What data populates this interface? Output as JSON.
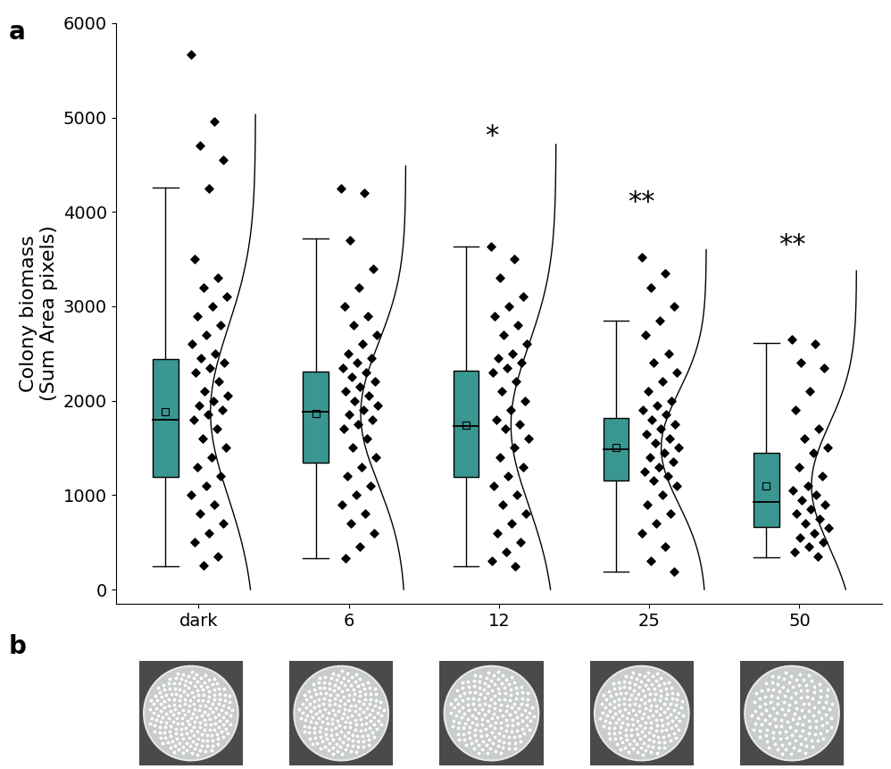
{
  "chart_data": {
    "type": "box",
    "y_label": "Colony biomass\n(Sum Area pixels)",
    "categories": [
      "dark",
      "6",
      "12",
      "25",
      "50"
    ],
    "color": "#3a9690",
    "ylim": [
      -150,
      6000
    ],
    "yticks": [
      0,
      1000,
      2000,
      3000,
      4000,
      5000,
      6000
    ],
    "boxes": [
      {
        "whisker_low": 250,
        "q1": 1195,
        "median": 1800,
        "q3": 2440,
        "whisker_high": 4260,
        "mean": 1880,
        "distribution": {
          "mean": 1880,
          "sd": 900
        },
        "points": [
          5667,
          4960,
          4700,
          4550,
          4250,
          3500,
          3300,
          3200,
          3100,
          3000,
          2900,
          2800,
          2700,
          2600,
          2500,
          2450,
          2400,
          2350,
          2300,
          2200,
          2100,
          2050,
          2000,
          1950,
          1900,
          1850,
          1800,
          1700,
          1600,
          1500,
          1400,
          1300,
          1200,
          1100,
          1000,
          900,
          800,
          700,
          600,
          500,
          350,
          260
        ]
      },
      {
        "whisker_low": 330,
        "q1": 1340,
        "median": 1880,
        "q3": 2310,
        "whisker_high": 3720,
        "mean": 1860,
        "distribution": {
          "mean": 1860,
          "sd": 750
        },
        "points": [
          4250,
          4200,
          3700,
          3400,
          3200,
          3000,
          2900,
          2800,
          2700,
          2600,
          2500,
          2450,
          2400,
          2350,
          2300,
          2250,
          2200,
          2150,
          2100,
          2050,
          2000,
          1950,
          1900,
          1850,
          1800,
          1750,
          1700,
          1600,
          1500,
          1400,
          1300,
          1200,
          1100,
          1000,
          900,
          800,
          700,
          600,
          450,
          330
        ]
      },
      {
        "whisker_low": 250,
        "q1": 1190,
        "median": 1730,
        "q3": 2320,
        "whisker_high": 3630,
        "mean": 1740,
        "distribution": {
          "mean": 1740,
          "sd": 850
        },
        "points": [
          3630,
          3500,
          3300,
          3100,
          3000,
          2900,
          2800,
          2700,
          2600,
          2500,
          2450,
          2400,
          2350,
          2300,
          2200,
          2100,
          2000,
          1900,
          1800,
          1750,
          1700,
          1600,
          1500,
          1400,
          1300,
          1200,
          1100,
          1000,
          900,
          800,
          700,
          600,
          500,
          400,
          300,
          250
        ]
      },
      {
        "whisker_low": 190,
        "q1": 1150,
        "median": 1490,
        "q3": 1820,
        "whisker_high": 2850,
        "mean": 1500,
        "distribution": {
          "mean": 1500,
          "sd": 600
        },
        "points": [
          3520,
          3350,
          3200,
          3000,
          2850,
          2700,
          2500,
          2400,
          2300,
          2200,
          2100,
          2000,
          1950,
          1900,
          1850,
          1800,
          1750,
          1700,
          1650,
          1600,
          1550,
          1500,
          1450,
          1400,
          1350,
          1300,
          1250,
          1200,
          1150,
          1100,
          1000,
          900,
          800,
          700,
          600,
          450,
          300,
          190
        ]
      },
      {
        "whisker_low": 340,
        "q1": 660,
        "median": 930,
        "q3": 1450,
        "whisker_high": 2610,
        "mean": 1100,
        "distribution": {
          "mean": 1100,
          "sd": 650
        },
        "points": [
          2650,
          2600,
          2400,
          2350,
          2100,
          1900,
          1700,
          1600,
          1500,
          1450,
          1300,
          1200,
          1100,
          1050,
          1000,
          950,
          900,
          850,
          800,
          750,
          700,
          650,
          600,
          550,
          500,
          450,
          400,
          350
        ]
      }
    ],
    "annotations": [
      {
        "text": "*",
        "category": "12",
        "y": 4800
      },
      {
        "text": "**",
        "category": "25",
        "y": 4100
      },
      {
        "text": "**",
        "category": "50",
        "y": 3650
      }
    ],
    "panel_labels": [
      "a",
      "b"
    ]
  }
}
